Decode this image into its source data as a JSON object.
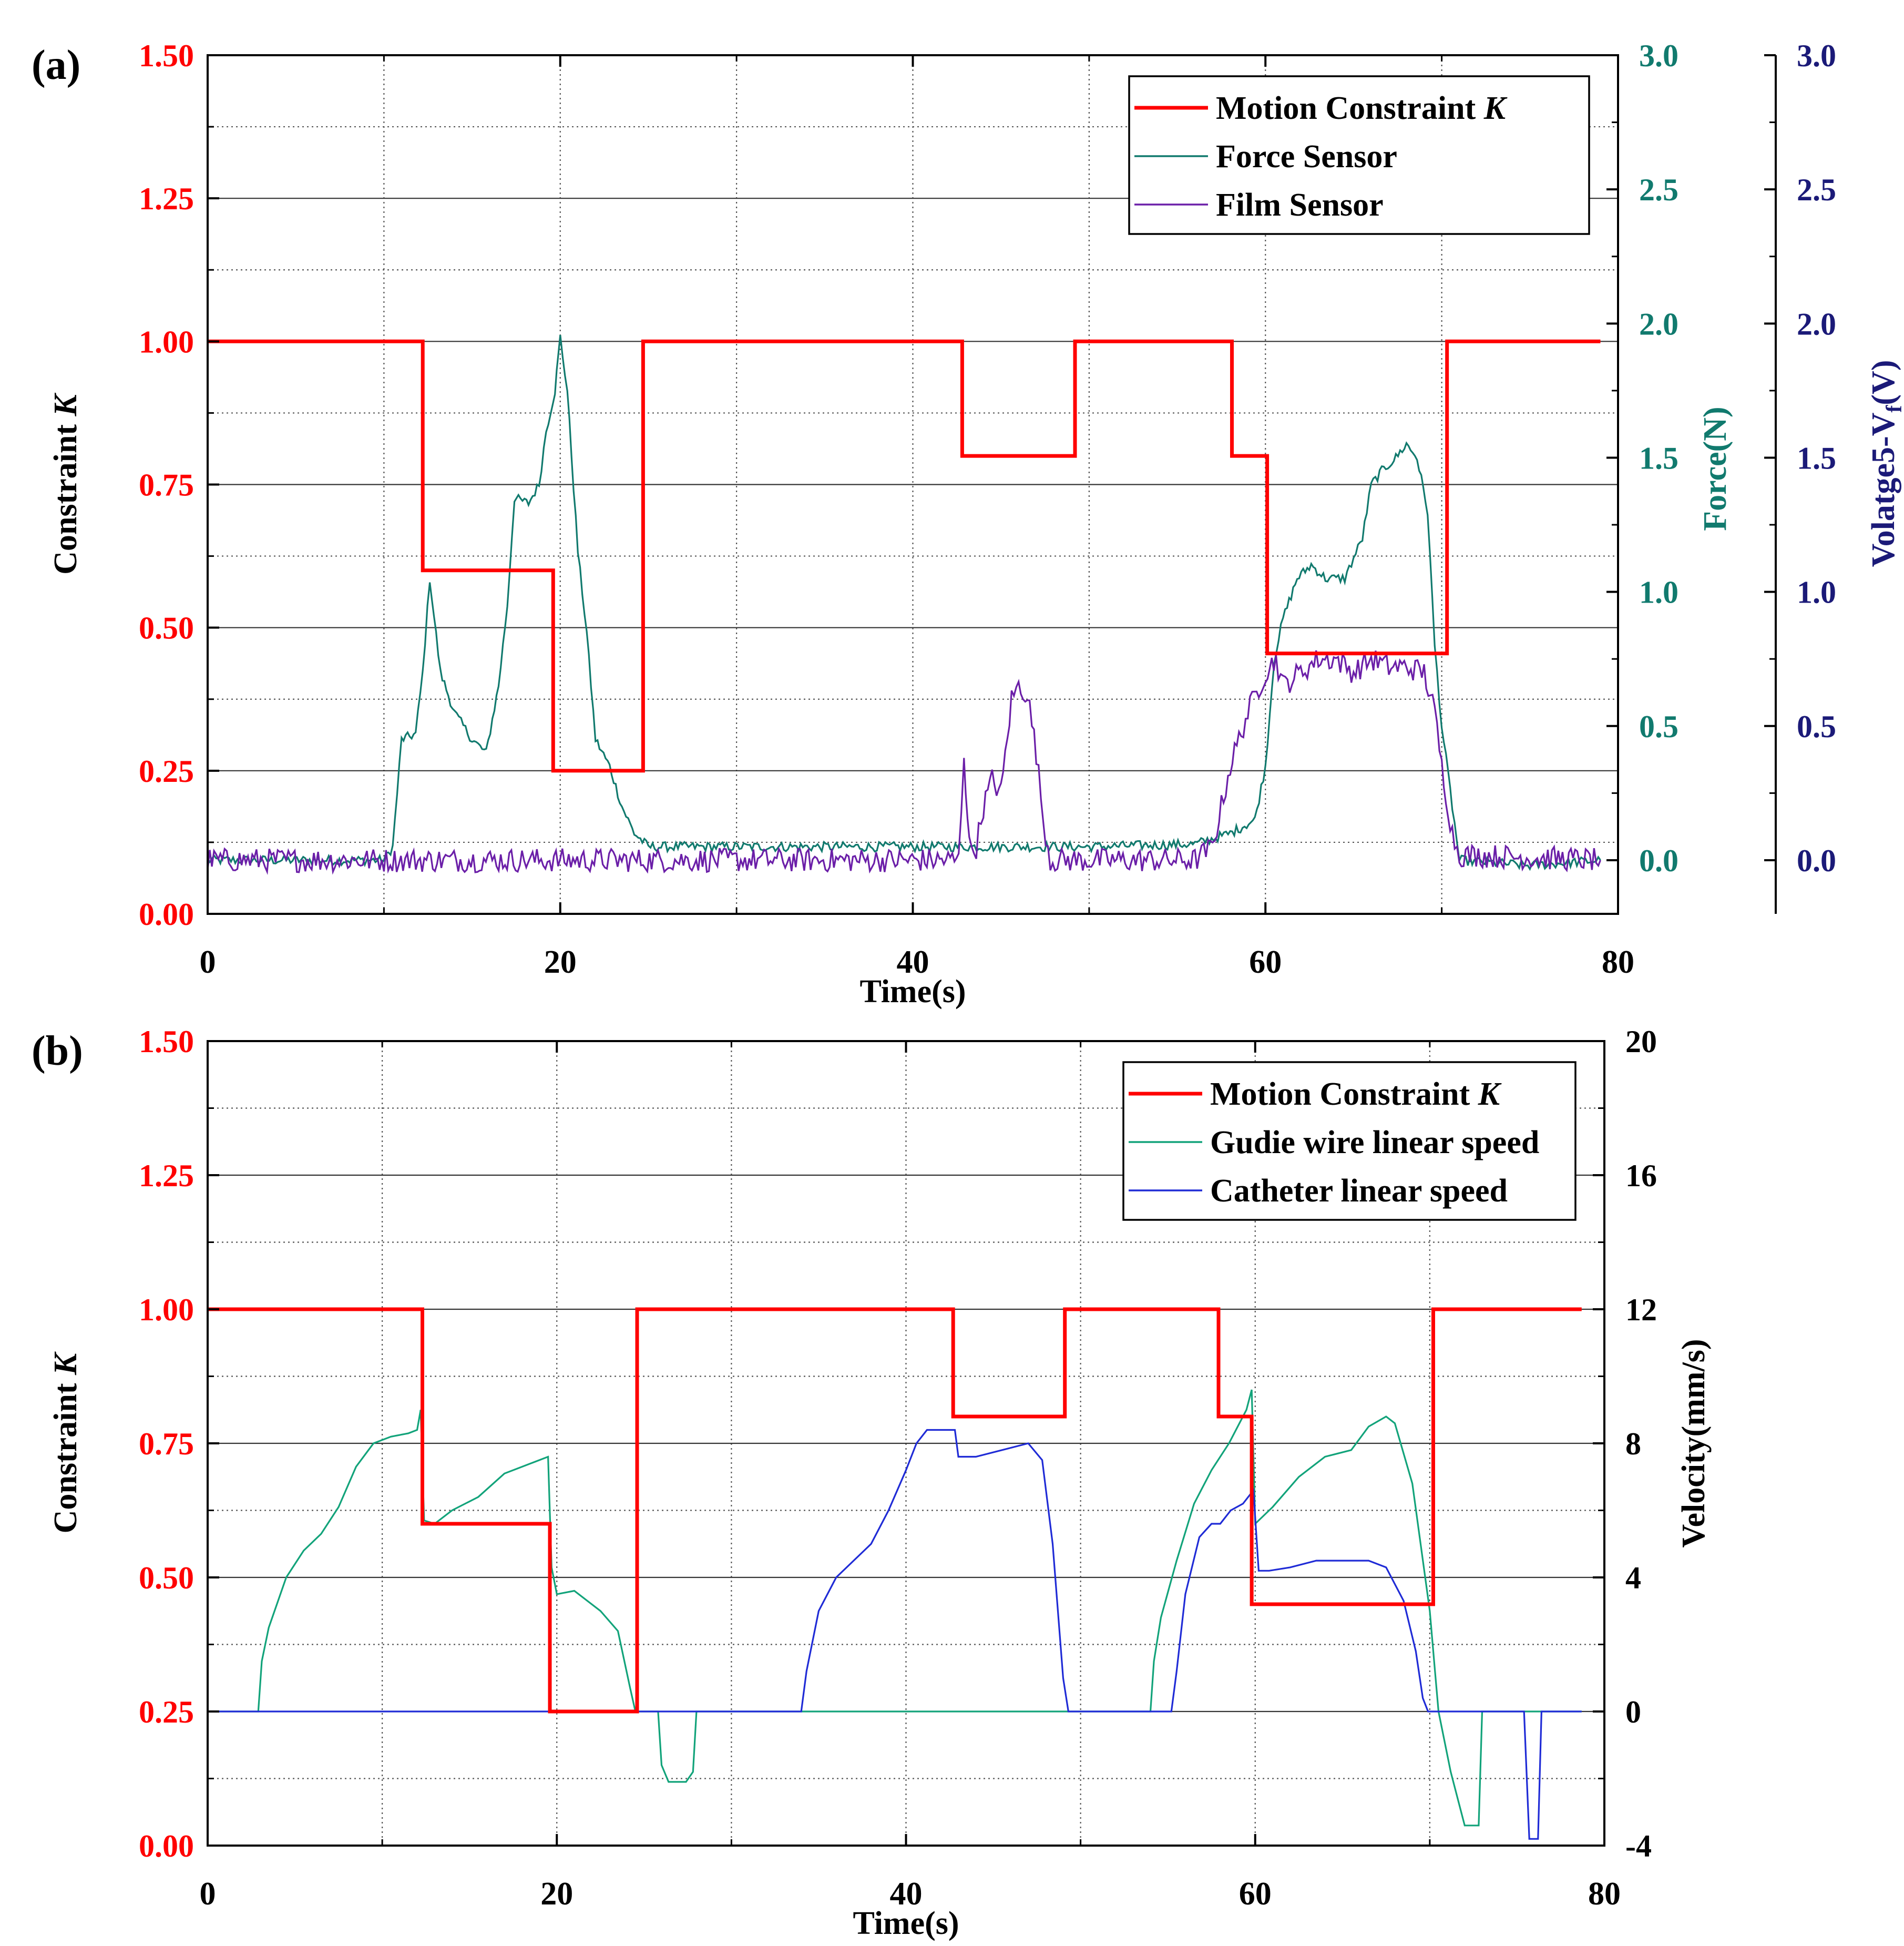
{
  "colors": {
    "constraint": "#ff0000",
    "force": "#117a6e",
    "film": "#6b1fa8",
    "guide": "#12a37a",
    "catheter": "#1f2bd6",
    "volt_axis": "#1b1a78",
    "black": "#000000"
  },
  "chart_data": [
    {
      "type": "line",
      "panel_label": "(a)",
      "xlabel": "Time(s)",
      "xlim": [
        0,
        80
      ],
      "x_ticks": [
        0,
        20,
        40,
        60,
        80
      ],
      "ylabel": "Constraint K",
      "ylabel_main": "Constraint ",
      "ylabel_italic": "K",
      "ylim": [
        0,
        1.5
      ],
      "y_ticks": [
        0.0,
        0.25,
        0.5,
        0.75,
        1.0,
        1.25,
        1.5
      ],
      "y_tick_labels": [
        "0.00",
        "0.25",
        "0.50",
        "0.75",
        "1.00",
        "1.25",
        "1.50"
      ],
      "y2": {
        "label": "Force(N)",
        "ylim": [
          -0.2,
          3.0
        ],
        "ticks": [
          0.0,
          0.5,
          1.0,
          1.5,
          2.0,
          2.5,
          3.0
        ],
        "tick_labels": [
          "0.0",
          "0.5",
          "1.0",
          "1.5",
          "2.0",
          "2.5",
          "3.0"
        ]
      },
      "y3": {
        "label": "Volatge5-Vf(V)",
        "label_main": "Volatge5-V",
        "label_sub": "f",
        "label_end": "(V)",
        "ylim": [
          -0.2,
          3.0
        ],
        "ticks": [
          0.0,
          0.5,
          1.0,
          1.5,
          2.0,
          2.5,
          3.0
        ],
        "tick_labels": [
          "0.0",
          "0.5",
          "1.0",
          "1.5",
          "2.0",
          "2.5",
          "3.0"
        ]
      },
      "grid": true,
      "legend_position": "top-right",
      "series": [
        {
          "name": "Motion Constraint K",
          "name_main": "Motion Constraint ",
          "name_italic": "K",
          "axis": "left",
          "style": "step",
          "x": [
            0,
            12.2,
            12.2,
            19.6,
            19.6,
            24.7,
            24.7,
            42.8,
            42.8,
            49.2,
            49.2,
            58.1,
            58.1,
            60.1,
            60.1,
            70.3,
            70.3,
            79.0
          ],
          "y": [
            1.0,
            1.0,
            0.6,
            0.6,
            0.25,
            0.25,
            1.0,
            1.0,
            0.8,
            0.8,
            1.0,
            1.0,
            0.8,
            0.8,
            0.455,
            0.455,
            1.0,
            1.0
          ]
        },
        {
          "name": "Force Sensor",
          "axis": "right",
          "x": [
            0,
            10.0,
            10.5,
            11.0,
            11.8,
            12.2,
            12.6,
            13.2,
            14.0,
            15.0,
            15.8,
            16.5,
            17.0,
            17.4,
            18.2,
            18.8,
            19.2,
            19.7,
            20.0,
            20.4,
            21.0,
            21.5,
            22.0,
            22.8,
            23.5,
            24.2,
            25.0,
            40,
            50,
            56,
            58,
            59.4,
            60.0,
            60.5,
            61.0,
            61.8,
            62.6,
            63.4,
            64.5,
            65.5,
            66.0,
            66.6,
            67.4,
            68.0,
            68.6,
            69.2,
            69.6,
            70.0,
            70.6,
            71.0,
            75,
            79
          ],
          "y": [
            0.0,
            0.0,
            0.05,
            0.45,
            0.47,
            0.7,
            1.05,
            0.7,
            0.55,
            0.45,
            0.4,
            0.65,
            0.95,
            1.35,
            1.33,
            1.4,
            1.6,
            1.75,
            1.95,
            1.75,
            1.15,
            0.85,
            0.45,
            0.35,
            0.2,
            0.1,
            0.05,
            0.05,
            0.05,
            0.06,
            0.1,
            0.15,
            0.35,
            0.75,
            0.9,
            1.05,
            1.1,
            1.05,
            1.05,
            1.2,
            1.4,
            1.45,
            1.5,
            1.55,
            1.5,
            1.3,
            0.8,
            0.5,
            0.2,
            0.0,
            -0.02,
            0.0
          ]
        },
        {
          "name": "Film  Sensor",
          "axis": "third",
          "noisy": true,
          "x": [
            0,
            10,
            20,
            30,
            42.6,
            42.9,
            43.2,
            43.6,
            44.0,
            44.5,
            45.0,
            45.6,
            46.0,
            46.5,
            47.0,
            47.4,
            47.8,
            48.2,
            50,
            56,
            57.0,
            58.0,
            59.0,
            60.0,
            60.6,
            61.0,
            62.0,
            63.0,
            64.0,
            65.0,
            66.0,
            67.0,
            68.0,
            69.0,
            69.6,
            70.0,
            70.6,
            71.0,
            79
          ],
          "y": [
            0.0,
            0.0,
            0.0,
            0.0,
            0.0,
            0.4,
            0.05,
            0.05,
            0.2,
            0.3,
            0.25,
            0.6,
            0.65,
            0.62,
            0.4,
            0.15,
            0.0,
            0.0,
            0.0,
            0.0,
            0.05,
            0.35,
            0.55,
            0.7,
            0.75,
            0.65,
            0.7,
            0.75,
            0.75,
            0.7,
            0.75,
            0.72,
            0.72,
            0.7,
            0.55,
            0.35,
            0.1,
            0.02,
            0.0
          ]
        }
      ]
    },
    {
      "type": "line",
      "panel_label": "(b)",
      "xlabel": "Time(s)",
      "xlim": [
        0,
        80
      ],
      "x_ticks": [
        0,
        20,
        40,
        60,
        80
      ],
      "ylabel": "Constraint K",
      "ylabel_main": "Constraint ",
      "ylabel_italic": "K",
      "ylim": [
        0,
        1.5
      ],
      "y_ticks": [
        0.0,
        0.25,
        0.5,
        0.75,
        1.0,
        1.25,
        1.5
      ],
      "y_tick_labels": [
        "0.00",
        "0.25",
        "0.50",
        "0.75",
        "1.00",
        "1.25",
        "1.50"
      ],
      "y2": {
        "label": "Velocity(mm/s)",
        "ylim": [
          -4,
          20
        ],
        "ticks": [
          -4,
          0,
          4,
          8,
          12,
          16,
          20
        ],
        "tick_labels": [
          "-4",
          "0",
          "4",
          "8",
          "12",
          "16",
          "20"
        ]
      },
      "grid": true,
      "legend_position": "top-right",
      "series": [
        {
          "name": "Motion Constraint K",
          "name_main": "Motion Constraint ",
          "name_italic": "K",
          "axis": "left",
          "style": "step",
          "x": [
            0,
            12.3,
            12.3,
            19.6,
            19.6,
            24.6,
            24.6,
            42.7,
            42.7,
            49.1,
            49.1,
            57.9,
            57.9,
            59.8,
            59.8,
            70.2,
            70.2,
            78.7
          ],
          "y": [
            1.0,
            1.0,
            0.6,
            0.6,
            0.25,
            0.25,
            1.0,
            1.0,
            0.8,
            0.8,
            1.0,
            1.0,
            0.8,
            0.8,
            0.45,
            0.45,
            1.0,
            1.0
          ]
        },
        {
          "name": "Gudie wire  linear speed",
          "axis": "right",
          "x": [
            0,
            2.9,
            3.1,
            3.5,
            4.5,
            5.5,
            6.5,
            7.5,
            8.5,
            9.5,
            10.5,
            11.5,
            12.0,
            12.2,
            12.4,
            13.0,
            14.0,
            15.5,
            17.0,
            18.5,
            19.5,
            19.7,
            20.0,
            21.0,
            22.5,
            23.5,
            24.2,
            24.5,
            25.8,
            26.0,
            26.4,
            26.8,
            27.4,
            27.8,
            28.0,
            54.0,
            54.2,
            54.6,
            55.5,
            56.5,
            57.5,
            58.5,
            59.5,
            59.8,
            60.0,
            61.0,
            62.5,
            64.0,
            65.5,
            66.5,
            67.5,
            68.0,
            69.0,
            70.0,
            70.3,
            70.5,
            71.2,
            72.0,
            72.8,
            73.0,
            78.7
          ],
          "y": [
            0,
            0,
            1.5,
            2.5,
            4.0,
            4.8,
            5.3,
            6.1,
            7.3,
            8.0,
            8.2,
            8.3,
            8.4,
            9.0,
            5.7,
            5.6,
            6.0,
            6.4,
            7.1,
            7.4,
            7.6,
            4.3,
            3.5,
            3.6,
            3.0,
            2.4,
            0.7,
            0.0,
            0.0,
            -1.6,
            -2.1,
            -2.1,
            -2.1,
            -1.8,
            0.0,
            0.0,
            1.5,
            2.8,
            4.5,
            6.2,
            7.2,
            8.0,
            9.0,
            9.6,
            5.6,
            6.1,
            7.0,
            7.6,
            7.8,
            8.5,
            8.8,
            8.6,
            6.8,
            3.0,
            1.2,
            0.0,
            -1.8,
            -3.4,
            -3.4,
            0.0,
            0.0
          ]
        },
        {
          "name": "Catheter  linear speed",
          "axis": "right",
          "x": [
            0,
            34.0,
            34.3,
            35.0,
            36.0,
            37.0,
            38.0,
            39.0,
            40.0,
            40.6,
            41.2,
            42.0,
            42.8,
            43.0,
            44.0,
            45.5,
            47.0,
            47.8,
            48.4,
            49.0,
            49.3,
            49.6,
            55.2,
            55.5,
            56.0,
            56.8,
            57.5,
            58.0,
            58.6,
            59.3,
            59.9,
            60.2,
            60.8,
            62.0,
            63.5,
            65.0,
            66.5,
            67.5,
            68.5,
            69.2,
            69.6,
            69.9,
            75.4,
            75.7,
            76.2,
            76.4,
            78.7
          ],
          "y": [
            0,
            0,
            1.2,
            3.0,
            4.0,
            4.5,
            5.0,
            6.0,
            7.2,
            8.0,
            8.4,
            8.4,
            8.4,
            7.6,
            7.6,
            7.8,
            8.0,
            7.5,
            5.0,
            1.0,
            0.0,
            0.0,
            0.0,
            1.2,
            3.5,
            5.2,
            5.6,
            5.6,
            6.0,
            6.2,
            6.6,
            4.2,
            4.2,
            4.3,
            4.5,
            4.5,
            4.5,
            4.3,
            3.3,
            1.8,
            0.4,
            0.0,
            0.0,
            -3.8,
            -3.8,
            0.0,
            0.0
          ]
        }
      ]
    }
  ]
}
